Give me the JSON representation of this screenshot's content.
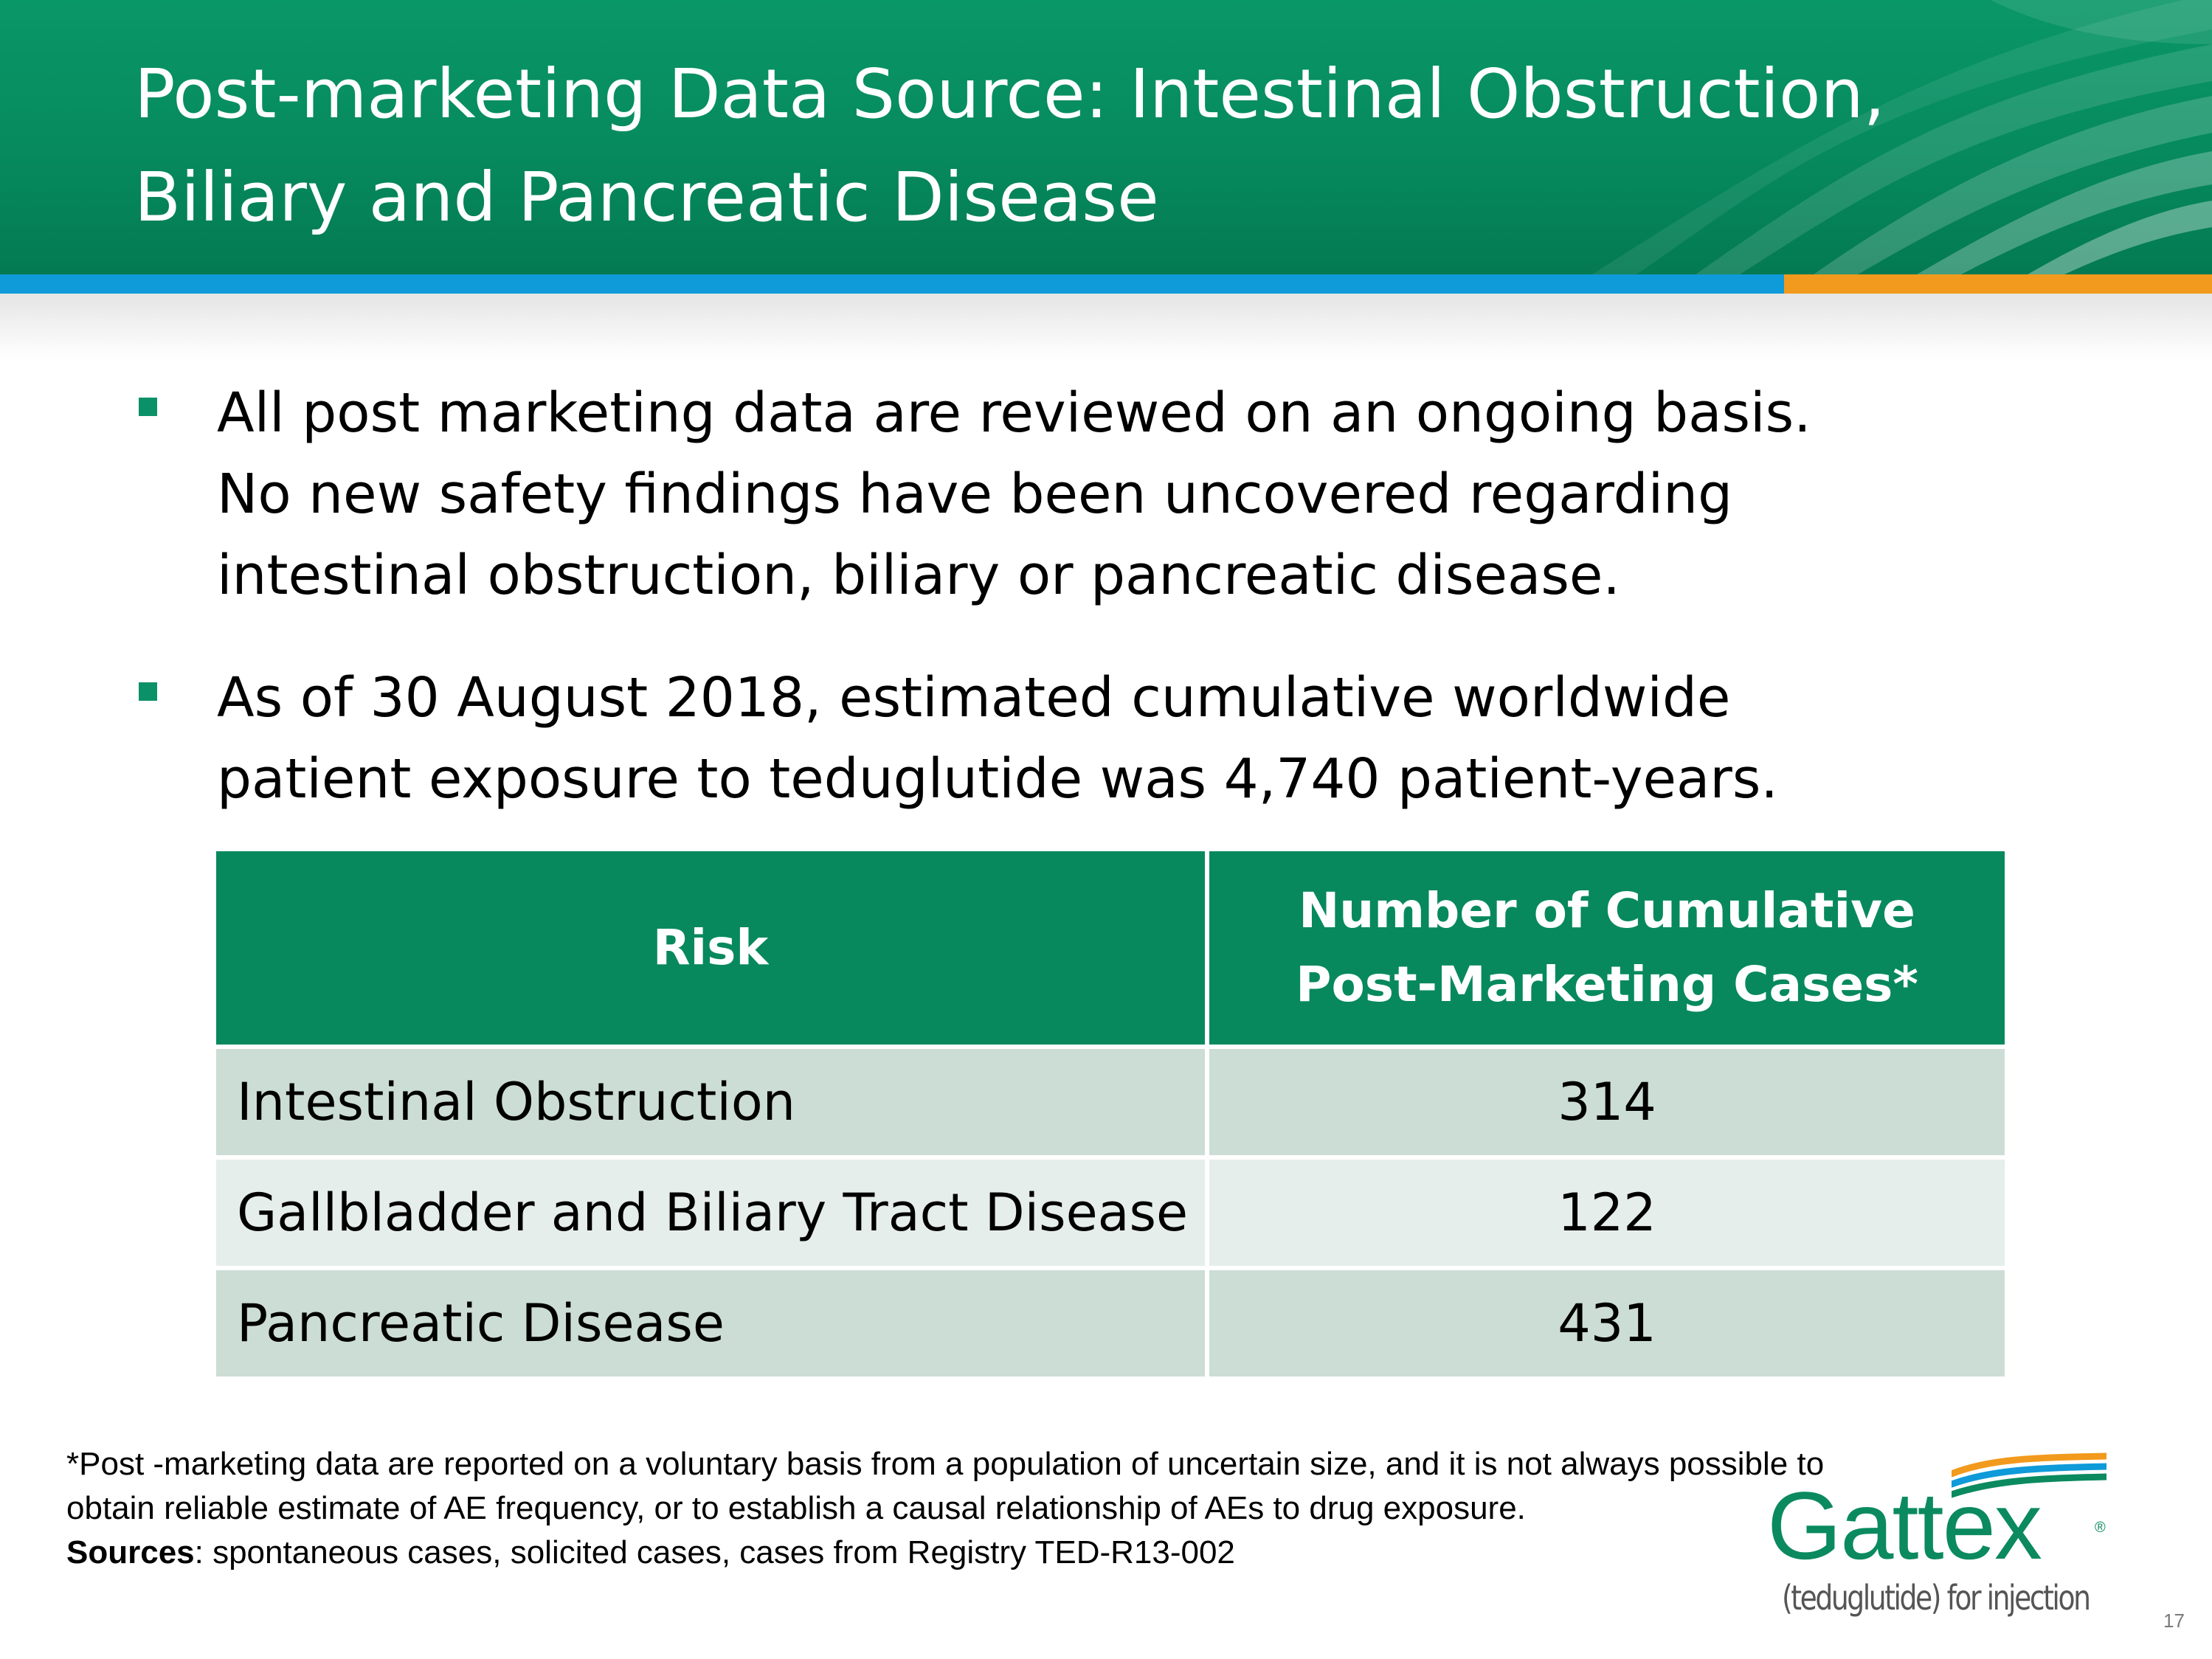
{
  "slide": {
    "title_line1": "Post-marketing Data Source: Intestinal Obstruction,",
    "title_line2": "Biliary and Pancreatic Disease",
    "page_number": "17"
  },
  "bullets": [
    {
      "lines": [
        "All post marketing data are reviewed on an ongoing basis.",
        "No new safety findings have been uncovered regarding",
        "intestinal obstruction, biliary or pancreatic disease."
      ]
    },
    {
      "lines": [
        "As of 30 August 2018, estimated cumulative worldwide",
        "patient exposure to teduglutide was 4,740 patient-years."
      ]
    }
  ],
  "table": {
    "header_risk": "Risk",
    "header_cases_line1": "Number of Cumulative",
    "header_cases_line2": "Post-Marketing Cases*",
    "rows": [
      {
        "risk": "Intestinal Obstruction",
        "cases": "314"
      },
      {
        "risk": "Gallbladder and Biliary Tract Disease",
        "cases": "122"
      },
      {
        "risk": "Pancreatic Disease",
        "cases": "431"
      }
    ]
  },
  "footnote": {
    "line1": "*Post -marketing data are reported on a voluntary basis from a population of uncertain size, and it is not always possible to",
    "line2": "obtain reliable estimate of AE frequency, or to establish a causal relationship of AEs to drug exposure.",
    "sources_label": "Sources",
    "sources_text": ": spontaneous cases, solicited cases, cases from Registry TED-R13-002"
  },
  "logo": {
    "brand": "Gattex",
    "registered_mark": "®",
    "subtitle": "(teduglutide) for injection"
  },
  "colors": {
    "header_green": "#068a5e",
    "stripe_blue": "#0f9ad9",
    "stripe_orange": "#f29a1d",
    "table_header_green": "#07895d",
    "row_dark": "#ccddd5",
    "row_light": "#e6eeeb",
    "bullet_marker": "#0b9168",
    "logo_green": "#0b8a5f"
  }
}
